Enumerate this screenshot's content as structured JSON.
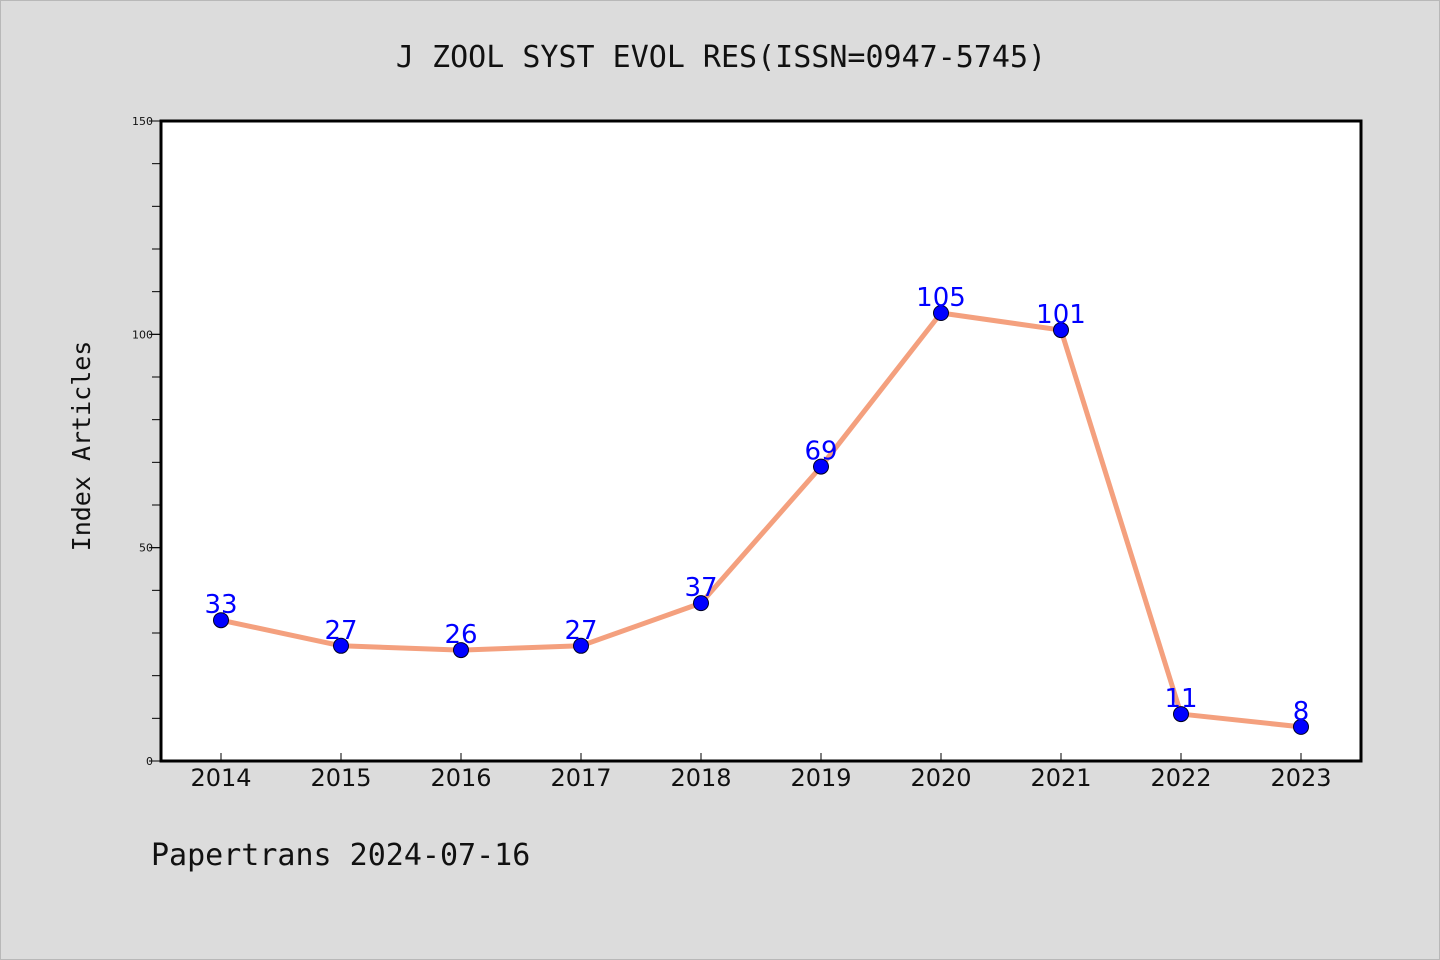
{
  "chart_data": {
    "type": "line",
    "title": "J ZOOL SYST EVOL RES(ISSN=0947-5745)",
    "xlabel": "",
    "ylabel": "Index Articles",
    "categories": [
      "2014",
      "2015",
      "2016",
      "2017",
      "2018",
      "2019",
      "2020",
      "2021",
      "2022",
      "2023"
    ],
    "series": [
      {
        "values": [
          33,
          27,
          26,
          27,
          37,
          69,
          105,
          101,
          11,
          8
        ],
        "color": "#f4a07e",
        "marker_color": "#0000ff"
      }
    ],
    "data_labels": [
      "33",
      "27",
      "26",
      "27",
      "37",
      "69",
      "105",
      "101",
      "11",
      "8"
    ],
    "data_label_color": "#0000ff",
    "ylim": [
      0,
      150
    ],
    "yticks_major": [
      0,
      50,
      100,
      150
    ],
    "yticks_major_labels": [
      "0",
      "50",
      "100",
      "150"
    ],
    "ytick_minor_step": 10,
    "grid": false,
    "legend": "none"
  },
  "footer": {
    "text": "Papertrans 2024-07-16"
  },
  "colors": {
    "background": "#dcdcdc",
    "plot_background": "#ffffff",
    "axis": "#000000"
  }
}
